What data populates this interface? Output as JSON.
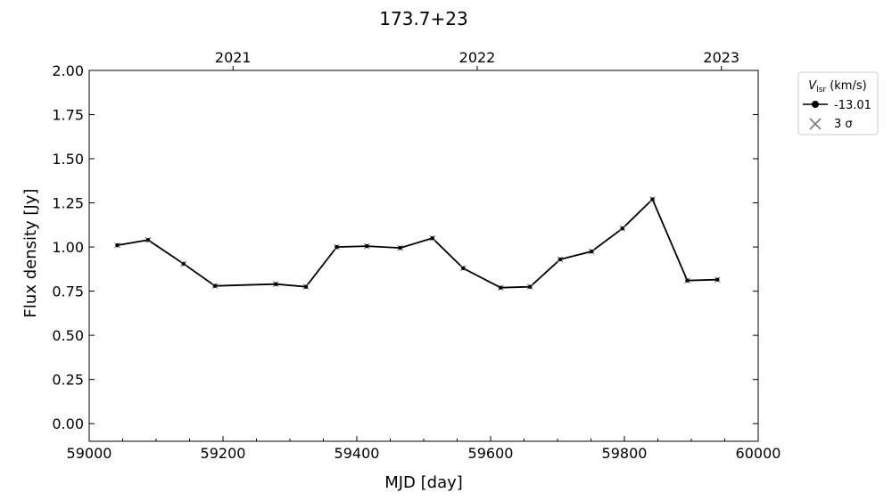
{
  "chart_data": {
    "type": "line",
    "title": "173.7+23",
    "xlabel": "MJD [day]",
    "ylabel": "Flux density [Jy]",
    "xlim": [
      59000,
      60000
    ],
    "ylim": [
      -0.1,
      2.0
    ],
    "x_ticks": [
      59000,
      59200,
      59400,
      59600,
      59800,
      60000
    ],
    "x_tick_labels": [
      "59000",
      "59200",
      "59400",
      "59600",
      "59800",
      "60000"
    ],
    "y_ticks": [
      0.0,
      0.25,
      0.5,
      0.75,
      1.0,
      1.25,
      1.5,
      1.75,
      2.0
    ],
    "y_tick_labels": [
      "0.00",
      "0.25",
      "0.50",
      "0.75",
      "1.00",
      "1.25",
      "1.50",
      "1.75",
      "2.00"
    ],
    "top_axis": {
      "ticks": [
        59215,
        59580,
        59945
      ],
      "labels": [
        "2021",
        "2022",
        "2023"
      ]
    },
    "grid": false,
    "legend": {
      "placement": "outside-top-right",
      "title_main": "V",
      "title_sub": "lsr",
      "title_rest": " (km/s)",
      "entries": [
        "-13.01",
        "3 σ"
      ]
    },
    "series": [
      {
        "name": "-13.01",
        "color": "#000000",
        "x": [
          59042,
          59088,
          59141,
          59188,
          59279,
          59324,
          59370,
          59415,
          59465,
          59513,
          59559,
          59615,
          59659,
          59704,
          59751,
          59797,
          59842,
          59894,
          59939
        ],
        "y": [
          1.01,
          1.04,
          0.905,
          0.78,
          0.79,
          0.775,
          1.0,
          1.005,
          0.995,
          1.05,
          0.88,
          0.77,
          0.775,
          0.93,
          0.975,
          1.105,
          1.27,
          0.81,
          0.815
        ]
      },
      {
        "name": "3 σ",
        "color": "#808080",
        "marker": "x",
        "x": [
          59042,
          59088,
          59141,
          59188,
          59279,
          59324,
          59370,
          59415,
          59465,
          59513,
          59559,
          59615,
          59659,
          59704,
          59751,
          59797,
          59842,
          59894,
          59939
        ],
        "y": [
          1.01,
          1.04,
          0.905,
          0.78,
          0.79,
          0.775,
          1.0,
          1.005,
          0.995,
          1.05,
          0.88,
          0.77,
          0.775,
          0.93,
          0.975,
          1.105,
          1.27,
          0.81,
          0.815
        ]
      }
    ]
  }
}
